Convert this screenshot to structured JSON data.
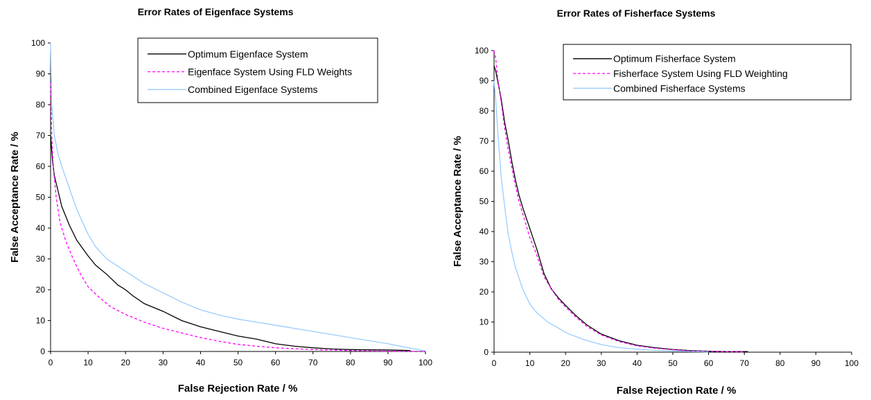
{
  "chart_data": [
    {
      "type": "line",
      "title": "Error Rates of Eigenface Systems",
      "xlabel": "False Rejection Rate / %",
      "ylabel": "False Acceptance Rate / %",
      "xlim": [
        0,
        100
      ],
      "ylim": [
        0,
        100
      ],
      "xticks": [
        "0",
        "10",
        "20",
        "30",
        "40",
        "50",
        "60",
        "70",
        "80",
        "90",
        "100"
      ],
      "yticks": [
        "0",
        "10",
        "20",
        "30",
        "40",
        "50",
        "60",
        "70",
        "80",
        "90",
        "100"
      ],
      "grid": false,
      "legend": "top-right",
      "series": [
        {
          "name": "Optimum Eigenface System",
          "color": "#000000",
          "dash": "solid",
          "points": [
            [
              0,
              70
            ],
            [
              0.5,
              62
            ],
            [
              1,
              57
            ],
            [
              2,
              52
            ],
            [
              3,
              47
            ],
            [
              5,
              41
            ],
            [
              7,
              36
            ],
            [
              10,
              31
            ],
            [
              12,
              28
            ],
            [
              15,
              25
            ],
            [
              18,
              21.5
            ],
            [
              20,
              20
            ],
            [
              22,
              18
            ],
            [
              25,
              15.5
            ],
            [
              30,
              13
            ],
            [
              35,
              10
            ],
            [
              40,
              8
            ],
            [
              45,
              6.5
            ],
            [
              50,
              5
            ],
            [
              55,
              4
            ],
            [
              60,
              2.5
            ],
            [
              65,
              1.7
            ],
            [
              70,
              1.2
            ],
            [
              75,
              0.8
            ],
            [
              80,
              0.6
            ],
            [
              90,
              0.5
            ],
            [
              96,
              0.3
            ]
          ]
        },
        {
          "name": "Eigenface System Using FLD Weights",
          "color": "#ff00ff",
          "dash": "dashed",
          "points": [
            [
              0,
              87
            ],
            [
              0.3,
              70
            ],
            [
              0.7,
              60
            ],
            [
              1.5,
              50
            ],
            [
              2.5,
              42
            ],
            [
              4,
              36
            ],
            [
              6,
              30
            ],
            [
              8,
              25
            ],
            [
              10,
              21
            ],
            [
              13,
              17.5
            ],
            [
              16,
              14.5
            ],
            [
              20,
              12
            ],
            [
              25,
              9.5
            ],
            [
              30,
              7.5
            ],
            [
              35,
              6
            ],
            [
              40,
              4.5
            ],
            [
              45,
              3.3
            ],
            [
              50,
              2.3
            ],
            [
              55,
              1.7
            ],
            [
              60,
              1.2
            ],
            [
              70,
              0.6
            ],
            [
              80,
              0.3
            ],
            [
              90,
              0.1
            ],
            [
              100,
              0
            ]
          ]
        },
        {
          "name": "Combined Eigenface Systems",
          "color": "#99ccff",
          "dash": "solid",
          "points": [
            [
              0,
              100
            ],
            [
              0.3,
              80
            ],
            [
              1,
              70
            ],
            [
              2,
              64
            ],
            [
              3,
              60
            ],
            [
              5,
              53
            ],
            [
              7,
              46
            ],
            [
              10,
              38
            ],
            [
              12,
              34
            ],
            [
              15,
              30
            ],
            [
              20,
              26
            ],
            [
              25,
              22
            ],
            [
              30,
              19
            ],
            [
              35,
              16
            ],
            [
              40,
              13.5
            ],
            [
              45,
              11.8
            ],
            [
              50,
              10.5
            ],
            [
              60,
              8.5
            ],
            [
              70,
              6.5
            ],
            [
              80,
              4.5
            ],
            [
              90,
              2.5
            ],
            [
              95,
              1.3
            ],
            [
              100,
              0.2
            ]
          ]
        }
      ]
    },
    {
      "type": "line",
      "title": "Error Rates of Fisherface Systems",
      "xlabel": "False Rejection Rate / %",
      "ylabel": "False Acceptance Rate / %",
      "xlim": [
        0,
        100
      ],
      "ylim": [
        0,
        100
      ],
      "xticks": [
        "0",
        "10",
        "20",
        "30",
        "40",
        "50",
        "60",
        "70",
        "80",
        "90",
        "100"
      ],
      "yticks": [
        "0",
        "10",
        "20",
        "30",
        "40",
        "50",
        "60",
        "70",
        "80",
        "90",
        "100"
      ],
      "grid": false,
      "legend": "top-right",
      "series": [
        {
          "name": "Optimum Fisherface System",
          "color": "#000000",
          "dash": "solid",
          "points": [
            [
              0,
              95
            ],
            [
              0.5,
              93
            ],
            [
              1,
              90
            ],
            [
              2,
              84
            ],
            [
              3,
              76
            ],
            [
              4,
              70
            ],
            [
              5,
              63
            ],
            [
              6,
              57
            ],
            [
              7,
              52
            ],
            [
              8,
              48
            ],
            [
              10,
              41
            ],
            [
              12,
              34
            ],
            [
              14,
              26
            ],
            [
              16,
              21
            ],
            [
              18,
              18
            ],
            [
              20,
              15.5
            ],
            [
              23,
              12
            ],
            [
              26,
              9
            ],
            [
              30,
              6
            ],
            [
              35,
              3.8
            ],
            [
              40,
              2.3
            ],
            [
              45,
              1.5
            ],
            [
              50,
              0.9
            ],
            [
              55,
              0.5
            ],
            [
              60,
              0.3
            ],
            [
              65,
              0.2
            ],
            [
              71,
              0.2
            ]
          ]
        },
        {
          "name": "Fisherface System Using FLD Weighting",
          "color": "#ff00ff",
          "dash": "dashed",
          "points": [
            [
              0,
              100
            ],
            [
              0.5,
              97
            ],
            [
              1,
              91
            ],
            [
              2,
              83
            ],
            [
              3,
              74
            ],
            [
              4,
              67
            ],
            [
              5,
              61
            ],
            [
              6,
              55
            ],
            [
              7,
              50
            ],
            [
              8,
              46
            ],
            [
              10,
              38
            ],
            [
              12,
              32
            ],
            [
              14,
              25
            ],
            [
              16,
              21
            ],
            [
              18,
              17.5
            ],
            [
              20,
              15
            ],
            [
              23,
              11.5
            ],
            [
              26,
              8.5
            ],
            [
              30,
              5.7
            ],
            [
              35,
              3.5
            ],
            [
              40,
              2.1
            ],
            [
              45,
              1.3
            ],
            [
              50,
              0.8
            ],
            [
              55,
              0.4
            ],
            [
              60,
              0.2
            ],
            [
              70,
              0.1
            ]
          ]
        },
        {
          "name": "Combined Fisherface Systems",
          "color": "#99ccff",
          "dash": "solid",
          "points": [
            [
              0,
              90
            ],
            [
              0.5,
              83
            ],
            [
              1,
              74
            ],
            [
              2,
              58
            ],
            [
              3,
              48
            ],
            [
              4,
              39
            ],
            [
              5,
              33
            ],
            [
              6,
              28
            ],
            [
              8,
              21
            ],
            [
              10,
              16
            ],
            [
              12,
              13
            ],
            [
              15,
              10
            ],
            [
              18,
              8
            ],
            [
              20,
              6.5
            ],
            [
              25,
              4.2
            ],
            [
              30,
              2.5
            ],
            [
              35,
              1.5
            ],
            [
              40,
              1
            ],
            [
              45,
              0.6
            ],
            [
              50,
              0.4
            ],
            [
              55,
              0.2
            ],
            [
              60,
              0.1
            ]
          ]
        }
      ]
    }
  ]
}
